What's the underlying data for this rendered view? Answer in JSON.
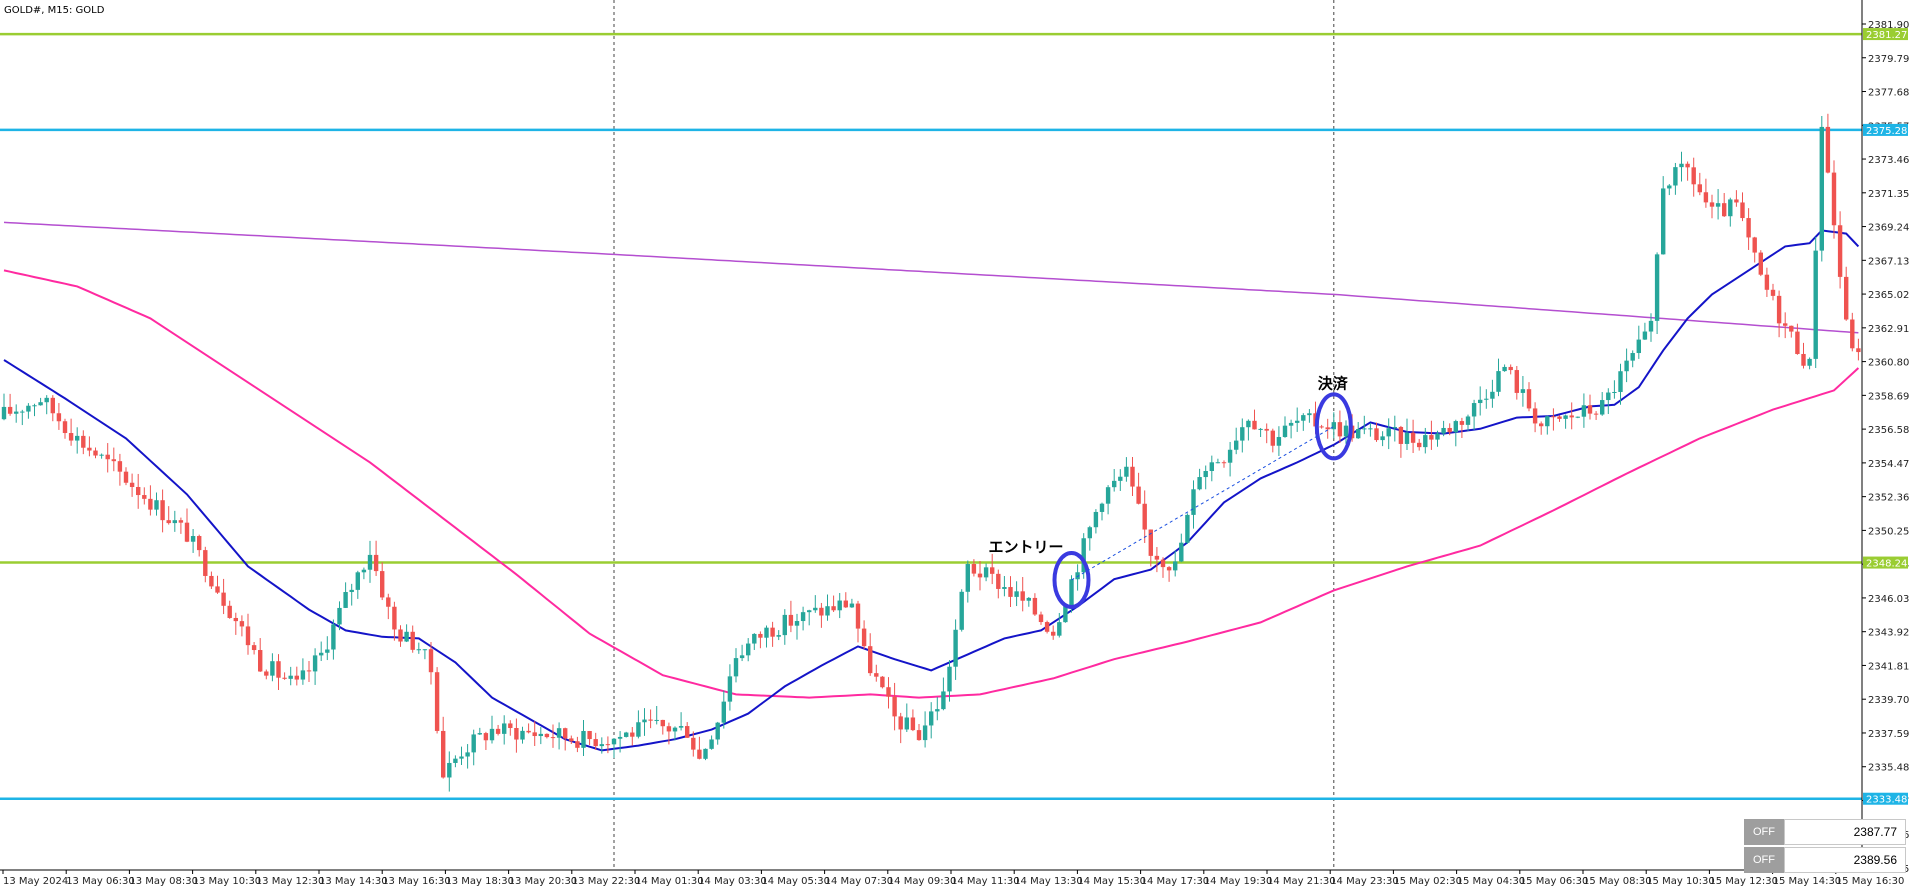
{
  "chart_data": {
    "type": "candlestick",
    "title": "GOLD#, M15:  GOLD",
    "ylim": [
      2327.9,
      2383.4
    ],
    "y_ticks": [
      "2381.90",
      "2379.79",
      "2377.68",
      "2375.57",
      "2373.46",
      "2371.35",
      "2369.24",
      "2367.13",
      "2365.02",
      "2362.91",
      "2360.80",
      "2358.69",
      "2356.58",
      "2354.47",
      "2352.36",
      "2350.25",
      "2348.14",
      "2346.03",
      "2343.92",
      "2341.81",
      "2339.70",
      "2337.59",
      "2335.48",
      "2333.37",
      "2331.26",
      "2329.15"
    ],
    "x_ticks": [
      "13 May 2024",
      "13 May 06:30",
      "13 May 08:30",
      "13 May 10:30",
      "13 May 12:30",
      "13 May 14:30",
      "13 May 16:30",
      "13 May 18:30",
      "13 May 20:30",
      "13 May 22:30",
      "14 May 01:30",
      "14 May 03:30",
      "14 May 05:30",
      "14 May 07:30",
      "14 May 09:30",
      "14 May 11:30",
      "14 May 13:30",
      "14 May 15:30",
      "14 May 17:30",
      "14 May 19:30",
      "14 May 21:30",
      "14 May 23:30",
      "15 May 02:30",
      "15 May 04:30",
      "15 May 06:30",
      "15 May 08:30",
      "15 May 10:30",
      "15 May 12:30",
      "15 May 14:30",
      "15 May 16:30"
    ],
    "horizontal_lines": [
      {
        "price": 2381.27,
        "label": "2381.27",
        "color": "#9acd32"
      },
      {
        "price": 2375.28,
        "label": "2375.28",
        "color": "#1eb4e6"
      },
      {
        "price": 2348.24,
        "label": "2348.24",
        "color": "#9acd32"
      },
      {
        "price": 2333.48,
        "label": "2333.48",
        "color": "#1eb4e6"
      }
    ],
    "annotations": [
      {
        "text": "エントリー",
        "bar": 175
      },
      {
        "text": "決済",
        "bar": 218
      }
    ],
    "vertical_separators": [
      100,
      218
    ],
    "candle_anchors": [
      [
        0,
        2357.5
      ],
      [
        6,
        2358.5
      ],
      [
        12,
        2356
      ],
      [
        20,
        2353.5
      ],
      [
        30,
        2350
      ],
      [
        36,
        2346
      ],
      [
        42,
        2342
      ],
      [
        48,
        2340.5
      ],
      [
        52,
        2342.5
      ],
      [
        56,
        2346
      ],
      [
        60,
        2349
      ],
      [
        64,
        2344
      ],
      [
        68,
        2343
      ],
      [
        70,
        2341.5
      ],
      [
        72,
        2335
      ],
      [
        75,
        2336.5
      ],
      [
        80,
        2337.8
      ],
      [
        90,
        2337.5
      ],
      [
        95,
        2337.2
      ],
      [
        100,
        2337.3
      ],
      [
        106,
        2338
      ],
      [
        112,
        2337.8
      ],
      [
        114,
        2336
      ],
      [
        117,
        2338.5
      ],
      [
        120,
        2342.5
      ],
      [
        125,
        2344
      ],
      [
        132,
        2345
      ],
      [
        139,
        2345.8
      ],
      [
        141,
        2342.5
      ],
      [
        146,
        2338.5
      ],
      [
        150,
        2337.5
      ],
      [
        154,
        2340
      ],
      [
        158,
        2348
      ],
      [
        163,
        2347
      ],
      [
        168,
        2345.5
      ],
      [
        172,
        2344
      ],
      [
        176,
        2348.2
      ],
      [
        180,
        2352.5
      ],
      [
        184,
        2353.8
      ],
      [
        188,
        2349
      ],
      [
        192,
        2348
      ],
      [
        196,
        2354
      ],
      [
        200,
        2355
      ],
      [
        204,
        2357.5
      ],
      [
        208,
        2356
      ],
      [
        212,
        2357
      ],
      [
        216,
        2357
      ],
      [
        220,
        2356.5
      ],
      [
        226,
        2356.2
      ],
      [
        232,
        2356
      ],
      [
        236,
        2356.5
      ],
      [
        240,
        2357.5
      ],
      [
        246,
        2360.5
      ],
      [
        252,
        2356.8
      ],
      [
        258,
        2357.5
      ],
      [
        262,
        2358
      ],
      [
        266,
        2360.5
      ],
      [
        270,
        2362.8
      ],
      [
        272,
        2372
      ],
      [
        276,
        2372.8
      ],
      [
        280,
        2370
      ],
      [
        284,
        2370.5
      ],
      [
        288,
        2366
      ],
      [
        292,
        2363
      ],
      [
        296,
        2360.5
      ],
      [
        298,
        2375.8
      ],
      [
        302,
        2363
      ],
      [
        304,
        2361
      ]
    ],
    "ma_blue": [
      [
        0,
        2360.9
      ],
      [
        10,
        2358.5
      ],
      [
        20,
        2356
      ],
      [
        30,
        2352.5
      ],
      [
        40,
        2348
      ],
      [
        50,
        2345.3
      ],
      [
        56,
        2344
      ],
      [
        62,
        2343.6
      ],
      [
        68,
        2343.5
      ],
      [
        74,
        2342
      ],
      [
        80,
        2339.8
      ],
      [
        86,
        2338.5
      ],
      [
        92,
        2337.2
      ],
      [
        98,
        2336.5
      ],
      [
        104,
        2336.8
      ],
      [
        110,
        2337.2
      ],
      [
        116,
        2337.8
      ],
      [
        122,
        2338.8
      ],
      [
        128,
        2340.5
      ],
      [
        134,
        2341.8
      ],
      [
        140,
        2343
      ],
      [
        146,
        2342.2
      ],
      [
        152,
        2341.5
      ],
      [
        158,
        2342.5
      ],
      [
        164,
        2343.5
      ],
      [
        170,
        2344
      ],
      [
        176,
        2345.5
      ],
      [
        182,
        2347.2
      ],
      [
        188,
        2347.8
      ],
      [
        194,
        2349.5
      ],
      [
        200,
        2352
      ],
      [
        206,
        2353.5
      ],
      [
        212,
        2354.5
      ],
      [
        218,
        2355.6
      ],
      [
        224,
        2357
      ],
      [
        230,
        2356.4
      ],
      [
        236,
        2356.3
      ],
      [
        242,
        2356.6
      ],
      [
        248,
        2357.3
      ],
      [
        254,
        2357.4
      ],
      [
        260,
        2358
      ],
      [
        264,
        2358.1
      ],
      [
        268,
        2359.2
      ],
      [
        272,
        2361.5
      ],
      [
        276,
        2363.5
      ],
      [
        280,
        2365
      ],
      [
        284,
        2366
      ],
      [
        288,
        2367
      ],
      [
        292,
        2368
      ],
      [
        296,
        2368.2
      ],
      [
        298,
        2369
      ],
      [
        302,
        2368.8
      ],
      [
        304,
        2368
      ]
    ],
    "ma_pink": [
      [
        0,
        2366.5
      ],
      [
        12,
        2365.5
      ],
      [
        24,
        2363.5
      ],
      [
        36,
        2360.5
      ],
      [
        48,
        2357.5
      ],
      [
        60,
        2354.5
      ],
      [
        72,
        2351
      ],
      [
        84,
        2347.5
      ],
      [
        96,
        2343.8
      ],
      [
        108,
        2341.2
      ],
      [
        120,
        2340
      ],
      [
        132,
        2339.8
      ],
      [
        142,
        2340
      ],
      [
        150,
        2339.8
      ],
      [
        160,
        2340
      ],
      [
        172,
        2341
      ],
      [
        182,
        2342.2
      ],
      [
        194,
        2343.3
      ],
      [
        206,
        2344.5
      ],
      [
        218,
        2346.5
      ],
      [
        230,
        2348
      ],
      [
        242,
        2349.3
      ],
      [
        254,
        2351.5
      ],
      [
        266,
        2353.8
      ],
      [
        278,
        2356
      ],
      [
        290,
        2357.8
      ],
      [
        300,
        2359
      ],
      [
        304,
        2360.4
      ]
    ],
    "ma_purple": [
      [
        0,
        2369.5
      ],
      [
        100,
        2367.5
      ],
      [
        218,
        2365
      ],
      [
        304,
        2362.6
      ]
    ]
  },
  "panel": {
    "row1": {
      "button": "OFF",
      "value": "2387.77"
    },
    "row2": {
      "button": "OFF",
      "value": "2389.56"
    }
  }
}
